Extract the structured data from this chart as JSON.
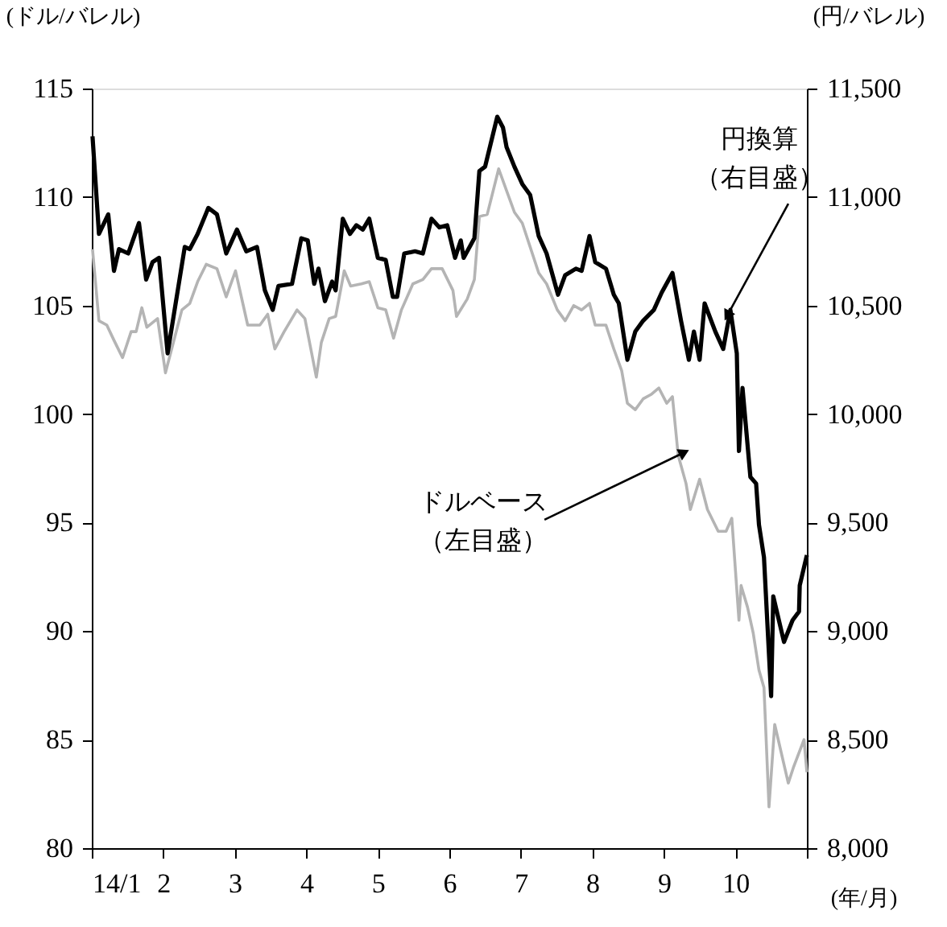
{
  "chart_data": {
    "type": "line",
    "ylabel": "(ドル/バレル)",
    "y2label": "(円/バレル)",
    "xlabel": "(年/月)",
    "xlim": [
      1,
      11
    ],
    "xticks": [
      {
        "value": 1,
        "label": "14/1"
      },
      2,
      3,
      4,
      5,
      6,
      7,
      8,
      9,
      10,
      {
        "value": 11,
        "label": null
      }
    ],
    "ylim": [
      80,
      115
    ],
    "yticks": [
      80,
      85,
      90,
      95,
      100,
      105,
      110,
      115
    ],
    "y2lim": [
      8000,
      11500
    ],
    "y2ticks": [
      {
        "value": 8000,
        "label": "8,000"
      },
      {
        "value": 8500,
        "label": "8,500"
      },
      {
        "value": 9000,
        "label": "9,000"
      },
      {
        "value": 9500,
        "label": "9,500"
      },
      {
        "value": 10000,
        "label": "10,000"
      },
      {
        "value": 10500,
        "label": "10,500"
      },
      {
        "value": 11000,
        "label": "11,000"
      },
      {
        "value": 11500,
        "label": "11,500"
      }
    ],
    "grid": false,
    "marker": "none",
    "line_style": "solid",
    "annotations": [
      {
        "text": "円換算（右目盛）",
        "x": 9.93,
        "y": 104.8
      },
      {
        "text": "ドルベース（左目盛）",
        "x": 9.2,
        "y": 98.1
      }
    ],
    "series": [
      {
        "color": "#b4b4b4",
        "axis": "y",
        "x": [
          1.01,
          1.1,
          1.21,
          1.31,
          1.43,
          1.55,
          1.62,
          1.7,
          1.77,
          1.92,
          2.03,
          2.26,
          2.37,
          2.48,
          2.6,
          2.75,
          2.88,
          3.01,
          3.18,
          3.35,
          3.46,
          3.56,
          3.69,
          3.87,
          3.98,
          4.14,
          4.21,
          4.32,
          4.41,
          4.53,
          4.62,
          4.77,
          4.88,
          5.0,
          5.11,
          5.22,
          5.33,
          5.49,
          5.63,
          5.75,
          5.9,
          6.05,
          6.1,
          6.25,
          6.35,
          6.42,
          6.53,
          6.69,
          6.8,
          6.91,
          7.02,
          7.13,
          7.25,
          7.36,
          7.51,
          7.62,
          7.74,
          7.85,
          7.96,
          8.04,
          8.19,
          8.3,
          8.41,
          8.49,
          8.6,
          8.71,
          8.82,
          8.93,
          9.04,
          9.12,
          9.2,
          9.31,
          9.37,
          9.5,
          9.61,
          9.76,
          9.87,
          9.95,
          10.05,
          10.08,
          10.17,
          10.25,
          10.33,
          10.4,
          10.47,
          10.55,
          10.74,
          10.81,
          10.96,
          11.0
        ],
        "values": [
          107.6,
          104.3,
          104.1,
          103.4,
          102.6,
          103.8,
          103.8,
          104.9,
          104.0,
          104.4,
          101.9,
          104.8,
          105.1,
          106.1,
          106.9,
          106.7,
          105.4,
          106.6,
          104.1,
          104.1,
          104.6,
          103.0,
          103.8,
          104.8,
          104.4,
          101.7,
          103.3,
          104.4,
          104.5,
          106.6,
          105.9,
          106.0,
          106.1,
          104.9,
          104.8,
          103.5,
          104.8,
          106.0,
          106.2,
          106.7,
          106.7,
          105.7,
          104.5,
          105.3,
          106.2,
          109.1,
          109.2,
          111.3,
          110.3,
          109.3,
          108.8,
          107.7,
          106.5,
          106.0,
          104.8,
          104.3,
          105.0,
          104.8,
          105.1,
          104.1,
          104.1,
          103.0,
          102.0,
          100.5,
          100.2,
          100.7,
          100.9,
          101.2,
          100.5,
          100.8,
          98.1,
          96.8,
          95.6,
          97.0,
          95.6,
          94.6,
          94.6,
          95.2,
          90.5,
          92.1,
          91.1,
          89.9,
          88.2,
          87.4,
          81.9,
          85.7,
          83.0,
          83.7,
          85.0,
          83.5
        ]
      },
      {
        "color": "#000000",
        "axis": "y2",
        "x": [
          1.01,
          1.1,
          1.23,
          1.31,
          1.38,
          1.51,
          1.66,
          1.76,
          1.85,
          1.94,
          2.06,
          2.3,
          2.37,
          2.48,
          2.63,
          2.75,
          2.88,
          3.03,
          3.16,
          3.31,
          3.42,
          3.53,
          3.61,
          3.8,
          3.93,
          4.02,
          4.11,
          4.17,
          4.26,
          4.36,
          4.41,
          4.51,
          4.61,
          4.7,
          4.79,
          4.88,
          5.0,
          5.11,
          5.21,
          5.27,
          5.37,
          5.52,
          5.63,
          5.75,
          5.86,
          5.97,
          6.08,
          6.16,
          6.2,
          6.35,
          6.42,
          6.5,
          6.67,
          6.75,
          6.8,
          6.91,
          7.02,
          7.13,
          7.25,
          7.36,
          7.52,
          7.62,
          7.77,
          7.85,
          7.96,
          8.04,
          8.19,
          8.3,
          8.37,
          8.49,
          8.6,
          8.71,
          8.86,
          8.97,
          9.12,
          9.24,
          9.35,
          9.42,
          9.5,
          9.57,
          9.72,
          9.83,
          9.93,
          10.02,
          10.05,
          10.1,
          10.21,
          10.29,
          10.33,
          10.4,
          10.5,
          10.53,
          10.68,
          10.8,
          10.89,
          10.9,
          11.0
        ],
        "values": [
          11280,
          10830,
          10920,
          10660,
          10760,
          10740,
          10880,
          10620,
          10700,
          10720,
          10280,
          10770,
          10760,
          10830,
          10950,
          10920,
          10740,
          10850,
          10750,
          10770,
          10570,
          10480,
          10590,
          10600,
          10810,
          10800,
          10600,
          10670,
          10520,
          10610,
          10570,
          10900,
          10830,
          10870,
          10850,
          10900,
          10720,
          10710,
          10540,
          10540,
          10740,
          10750,
          10740,
          10900,
          10860,
          10870,
          10720,
          10800,
          10720,
          10810,
          11120,
          11140,
          11370,
          11320,
          11230,
          11140,
          11060,
          11010,
          10820,
          10740,
          10550,
          10640,
          10670,
          10660,
          10820,
          10700,
          10670,
          10550,
          10510,
          10250,
          10380,
          10430,
          10480,
          10560,
          10650,
          10430,
          10250,
          10380,
          10250,
          10510,
          10380,
          10300,
          10480,
          10280,
          9830,
          10120,
          9710,
          9680,
          9490,
          9340,
          8700,
          9160,
          8950,
          9050,
          9090,
          9210,
          9350
        ]
      }
    ]
  }
}
